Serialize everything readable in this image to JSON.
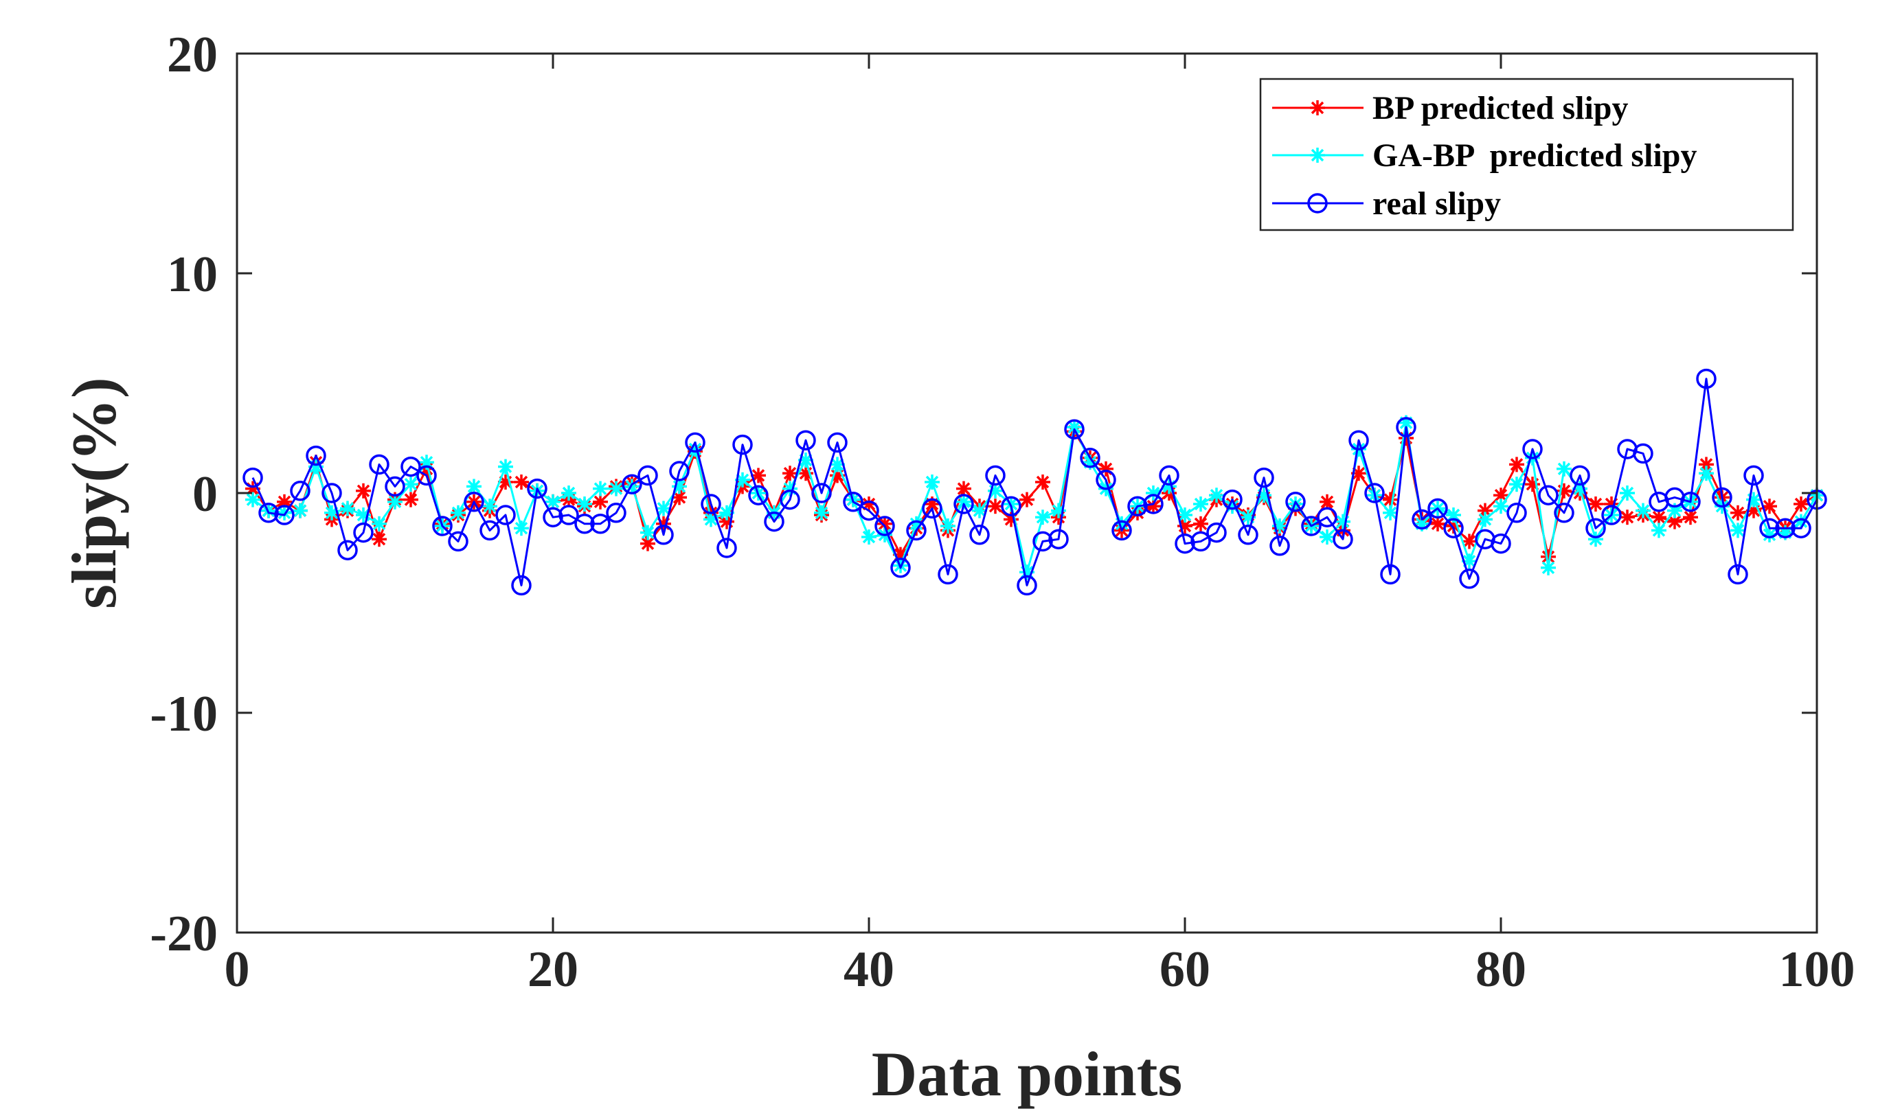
{
  "chart_data": {
    "type": "line",
    "title": "",
    "xlabel": "Data points",
    "ylabel": "slipy(%)",
    "xlim": [
      0,
      100
    ],
    "ylim": [
      -20,
      20
    ],
    "xticks": [
      0,
      20,
      40,
      60,
      80,
      100
    ],
    "yticks": [
      -20,
      -10,
      0,
      10,
      20
    ],
    "xtick_labels": [
      "0",
      "20",
      "40",
      "60",
      "80",
      "100"
    ],
    "ytick_labels": [
      "-20",
      "-10",
      "0",
      "10",
      "20"
    ],
    "grid": false,
    "legend_position": "top-right",
    "x": [
      1,
      2,
      3,
      4,
      5,
      6,
      7,
      8,
      9,
      10,
      11,
      12,
      13,
      14,
      15,
      16,
      17,
      18,
      19,
      20,
      21,
      22,
      23,
      24,
      25,
      26,
      27,
      28,
      29,
      30,
      31,
      32,
      33,
      34,
      35,
      36,
      37,
      38,
      39,
      40,
      41,
      42,
      43,
      44,
      45,
      46,
      47,
      48,
      49,
      50,
      51,
      52,
      53,
      54,
      55,
      56,
      57,
      58,
      59,
      60,
      61,
      62,
      63,
      64,
      65,
      66,
      67,
      68,
      69,
      70,
      71,
      72,
      73,
      74,
      75,
      76,
      77,
      78,
      79,
      80,
      81,
      82,
      83,
      84,
      85,
      86,
      87,
      88,
      89,
      90,
      91,
      92,
      93,
      94,
      95,
      96,
      97,
      98,
      99,
      100
    ],
    "series": [
      {
        "name": "BP predicted slipy",
        "color": "#ff0000",
        "marker": "asterisk",
        "values": [
          0.2,
          -0.8,
          -0.4,
          -0.8,
          1.4,
          -1.2,
          -0.8,
          0.1,
          -2.1,
          -0.3,
          -0.3,
          1.1,
          -1.4,
          -1.0,
          -0.4,
          -0.8,
          0.5,
          0.5,
          0.1,
          -0.4,
          -0.3,
          -0.6,
          -0.4,
          0.3,
          0.5,
          -2.3,
          -1.4,
          -0.2,
          1.9,
          -0.9,
          -1.3,
          0.3,
          0.8,
          -0.9,
          0.9,
          0.9,
          -1.0,
          0.8,
          -0.3,
          -0.5,
          -1.4,
          -2.8,
          -1.6,
          -0.5,
          -1.7,
          0.2,
          -0.6,
          -0.6,
          -1.2,
          -0.3,
          0.5,
          -1.1,
          2.8,
          1.6,
          1.1,
          -1.7,
          -0.9,
          -0.6,
          0.0,
          -1.5,
          -1.4,
          -0.3,
          -0.5,
          -1.0,
          -0.2,
          -1.6,
          -0.7,
          -1.4,
          -0.4,
          -1.7,
          0.9,
          -0.1,
          -0.3,
          2.5,
          -1.2,
          -1.4,
          -1.5,
          -2.2,
          -0.8,
          -0.1,
          1.3,
          0.4,
          -2.9,
          0.1,
          0.0,
          -0.5,
          -0.5,
          -1.1,
          -1.0,
          -1.1,
          -1.3,
          -1.1,
          1.3,
          -0.2,
          -0.9,
          -0.8,
          -0.6,
          -1.6,
          -0.5,
          -0.1
        ]
      },
      {
        "name": "GA-BP  predicted slipy",
        "color": "#00ffff",
        "marker": "asterisk",
        "values": [
          -0.3,
          -0.8,
          -0.9,
          -0.8,
          1.2,
          -0.9,
          -0.7,
          -1.0,
          -1.4,
          -0.4,
          0.4,
          1.4,
          -1.5,
          -0.9,
          0.3,
          -0.6,
          1.2,
          -1.6,
          0.1,
          -0.4,
          0.0,
          -0.5,
          0.2,
          0.2,
          0.3,
          -1.8,
          -0.7,
          0.3,
          2.0,
          -1.2,
          -0.9,
          0.6,
          0.0,
          -0.9,
          0.2,
          1.5,
          -0.9,
          1.3,
          -0.3,
          -2.0,
          -1.9,
          -3.3,
          -1.4,
          0.5,
          -1.5,
          -0.4,
          -0.8,
          0.1,
          -0.5,
          -3.6,
          -1.1,
          -0.8,
          3.0,
          1.4,
          0.2,
          -1.4,
          -0.6,
          0.0,
          0.3,
          -1.0,
          -0.5,
          -0.1,
          -0.6,
          -1.1,
          -0.1,
          -1.5,
          -0.5,
          -1.5,
          -2.0,
          -1.3,
          2.0,
          -0.1,
          -0.9,
          3.2,
          -1.4,
          -0.7,
          -1.0,
          -3.1,
          -1.2,
          -0.6,
          0.4,
          1.6,
          -3.4,
          1.1,
          0.2,
          -2.1,
          -1.0,
          0.0,
          -0.8,
          -1.7,
          -0.8,
          -0.4,
          0.9,
          -0.6,
          -1.7,
          -0.3,
          -1.9,
          -1.8,
          -1.3,
          -0.1
        ]
      },
      {
        "name": "real slipy",
        "color": "#0000ff",
        "marker": "circle",
        "values": [
          0.7,
          -0.9,
          -1.0,
          0.1,
          1.7,
          0.0,
          -2.6,
          -1.8,
          1.3,
          0.3,
          1.2,
          0.8,
          -1.5,
          -2.2,
          -0.4,
          -1.7,
          -1.0,
          -4.2,
          0.2,
          -1.1,
          -1.0,
          -1.4,
          -1.4,
          -0.9,
          0.4,
          0.8,
          -1.9,
          1.0,
          2.3,
          -0.5,
          -2.5,
          2.2,
          -0.1,
          -1.3,
          -0.3,
          2.4,
          0.0,
          2.3,
          -0.4,
          -0.8,
          -1.5,
          -3.4,
          -1.7,
          -0.7,
          -3.7,
          -0.5,
          -1.9,
          0.8,
          -0.6,
          -4.2,
          -2.2,
          -2.1,
          2.9,
          1.6,
          0.6,
          -1.7,
          -0.6,
          -0.5,
          0.8,
          -2.3,
          -2.2,
          -1.8,
          -0.3,
          -1.9,
          0.7,
          -2.4,
          -0.4,
          -1.5,
          -1.1,
          -2.1,
          2.4,
          0.0,
          -3.7,
          3.0,
          -1.2,
          -0.7,
          -1.6,
          -3.9,
          -2.1,
          -2.3,
          -0.9,
          2.0,
          -0.1,
          -0.9,
          0.8,
          -1.6,
          -1.0,
          2.0,
          1.8,
          -0.4,
          -0.2,
          -0.4,
          5.2,
          -0.2,
          -3.7,
          0.8,
          -1.6,
          -1.6,
          -1.6,
          -0.3
        ]
      }
    ]
  }
}
